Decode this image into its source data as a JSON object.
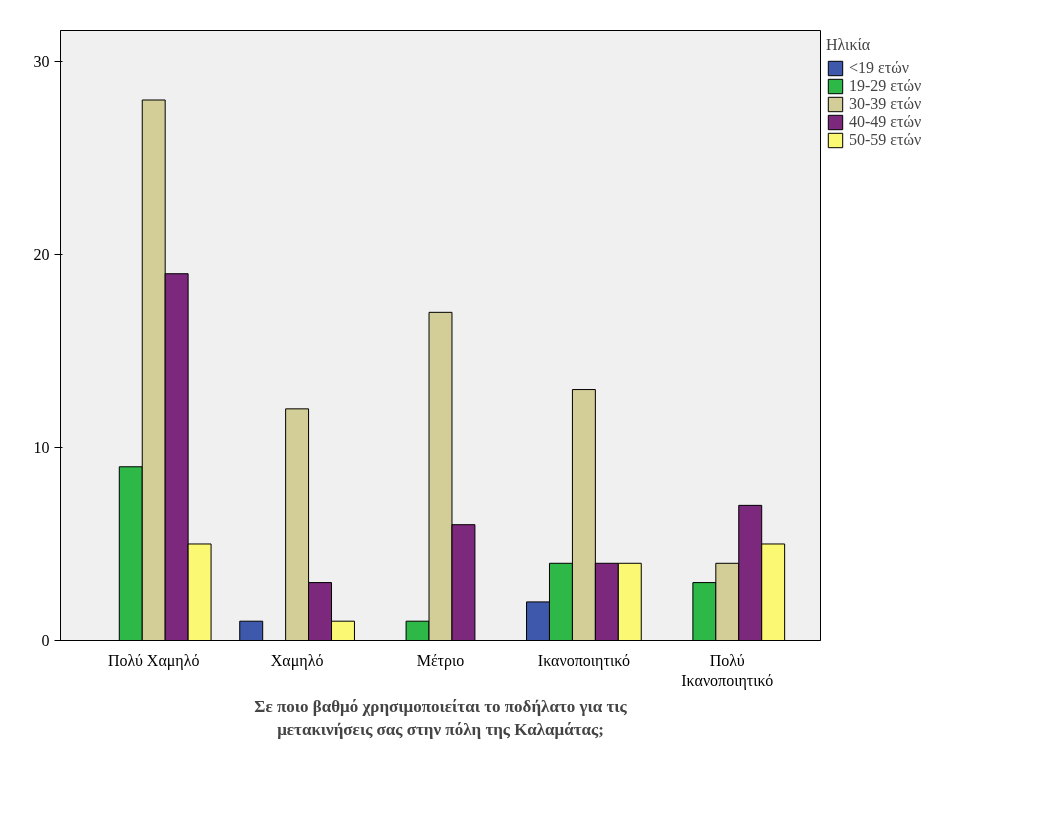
{
  "chart_data": {
    "type": "bar",
    "xlabel": "Σε ποιο βαθμό χρησιμοποιείται το ποδήλατο για τις μετακινήσεις σας στην πόλη της Καλαμάτας;",
    "legend_title": "Ηλικία",
    "categories": [
      "Πολύ Χαμηλό",
      "Χαμηλό",
      "Μέτριο",
      "Ικανοποιητικό",
      "Πολύ Ικανοποιητικό"
    ],
    "series": [
      {
        "name": "<19 ετών",
        "color": "#3e58ac",
        "values": [
          null,
          1,
          null,
          2,
          null
        ]
      },
      {
        "name": "19-29 ετών",
        "color": "#2eb848",
        "values": [
          9,
          null,
          1,
          4,
          3
        ]
      },
      {
        "name": "30-39 ετών",
        "color": "#d3ce97",
        "values": [
          28,
          12,
          17,
          13,
          4
        ]
      },
      {
        "name": "40-49 ετών",
        "color": "#7c287d",
        "values": [
          19,
          3,
          6,
          4,
          7
        ]
      },
      {
        "name": "50-59 ετών",
        "color": "#fbf873",
        "values": [
          5,
          1,
          null,
          4,
          5
        ]
      }
    ],
    "ylim": [
      0,
      31.6
    ],
    "yticks": [
      0,
      10,
      20,
      30
    ],
    "grid": false,
    "legend": "top right"
  }
}
